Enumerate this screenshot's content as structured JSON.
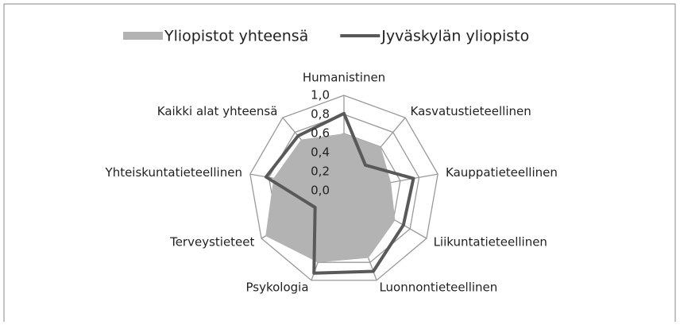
{
  "chart_data": {
    "type": "radar",
    "categories": [
      "Humanistinen",
      "Kasvatustieteellinen",
      "Kauppatieteellinen",
      "Liikuntatieteellinen",
      "Luonnontieteellinen",
      "Psykologia",
      "Terveystieteet",
      "Yhteiskuntatieteellinen",
      "Kaikki alat yhteensä"
    ],
    "series": [
      {
        "name": "Yliopistot yhteensä",
        "color": "#b3b3b3",
        "style": "area",
        "values": [
          0.6,
          0.6,
          0.5,
          0.62,
          0.75,
          0.8,
          0.95,
          0.75,
          0.7
        ]
      },
      {
        "name": "Jyväskylän yliopisto",
        "color": "#595959",
        "style": "line",
        "values": [
          0.81,
          0.35,
          0.74,
          0.72,
          0.9,
          0.92,
          0.35,
          0.83,
          0.75
        ]
      }
    ],
    "ylim": [
      0,
      1
    ],
    "yticks": [
      {
        "value": 0,
        "label": "0,0"
      },
      {
        "value": 0.2,
        "label": "0,2"
      },
      {
        "value": 0.4,
        "label": "0,4"
      },
      {
        "value": 0.6,
        "label": "0,6"
      },
      {
        "value": 0.8,
        "label": "0,8"
      },
      {
        "value": 1,
        "label": "1,0"
      }
    ],
    "grid": true,
    "legend": "top"
  }
}
